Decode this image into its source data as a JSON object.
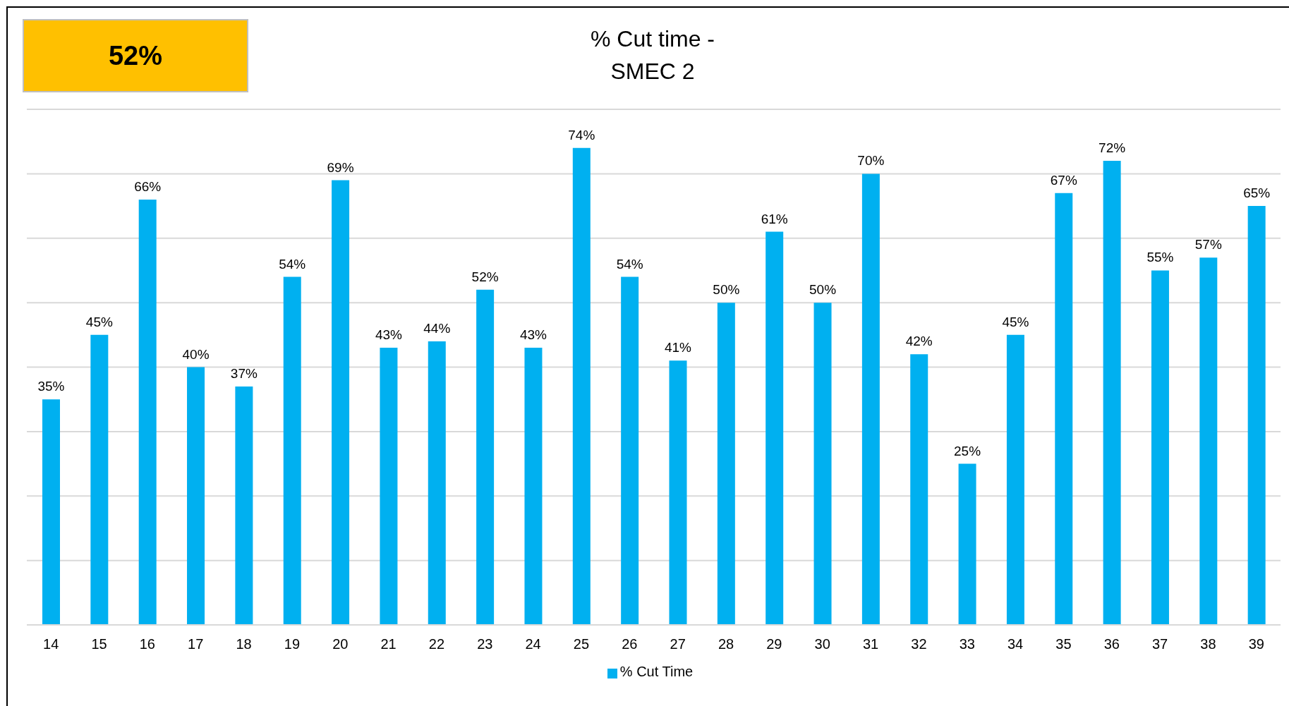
{
  "chart_data": {
    "type": "bar",
    "title": "% Cut time -\nSMEC 2",
    "annotations": [
      "52%"
    ],
    "categories": [
      "14",
      "15",
      "16",
      "17",
      "18",
      "19",
      "20",
      "21",
      "22",
      "23",
      "24",
      "25",
      "26",
      "27",
      "28",
      "29",
      "30",
      "31",
      "32",
      "33",
      "34",
      "35",
      "36",
      "37",
      "38",
      "39"
    ],
    "series": [
      {
        "name": "% Cut Time",
        "color": "#00b0f0",
        "values": [
          35,
          45,
          66,
          40,
          37,
          54,
          69,
          43,
          44,
          52,
          43,
          74,
          54,
          41,
          50,
          61,
          50,
          70,
          42,
          25,
          45,
          67,
          72,
          55,
          57,
          65
        ],
        "value_labels": [
          "35%",
          "45%",
          "66%",
          "40%",
          "37%",
          "54%",
          "69%",
          "43%",
          "44%",
          "52%",
          "43%",
          "74%",
          "54%",
          "41%",
          "50%",
          "61%",
          "50%",
          "70%",
          "42%",
          "25%",
          "45%",
          "67%",
          "72%",
          "55%",
          "57%",
          "65%"
        ]
      }
    ],
    "ylim": [
      0,
      80
    ],
    "yticks": [
      {
        "value": 0,
        "label": null
      },
      {
        "value": 10,
        "label": null
      },
      {
        "value": 20,
        "label": null
      },
      {
        "value": 30,
        "label": null
      },
      {
        "value": 40,
        "label": null
      },
      {
        "value": 50,
        "label": null
      },
      {
        "value": 60,
        "label": null
      },
      {
        "value": 70,
        "label": null
      },
      {
        "value": 80,
        "label": null
      }
    ],
    "grid": "y",
    "legend": "bottom",
    "tick_labels": "x"
  }
}
